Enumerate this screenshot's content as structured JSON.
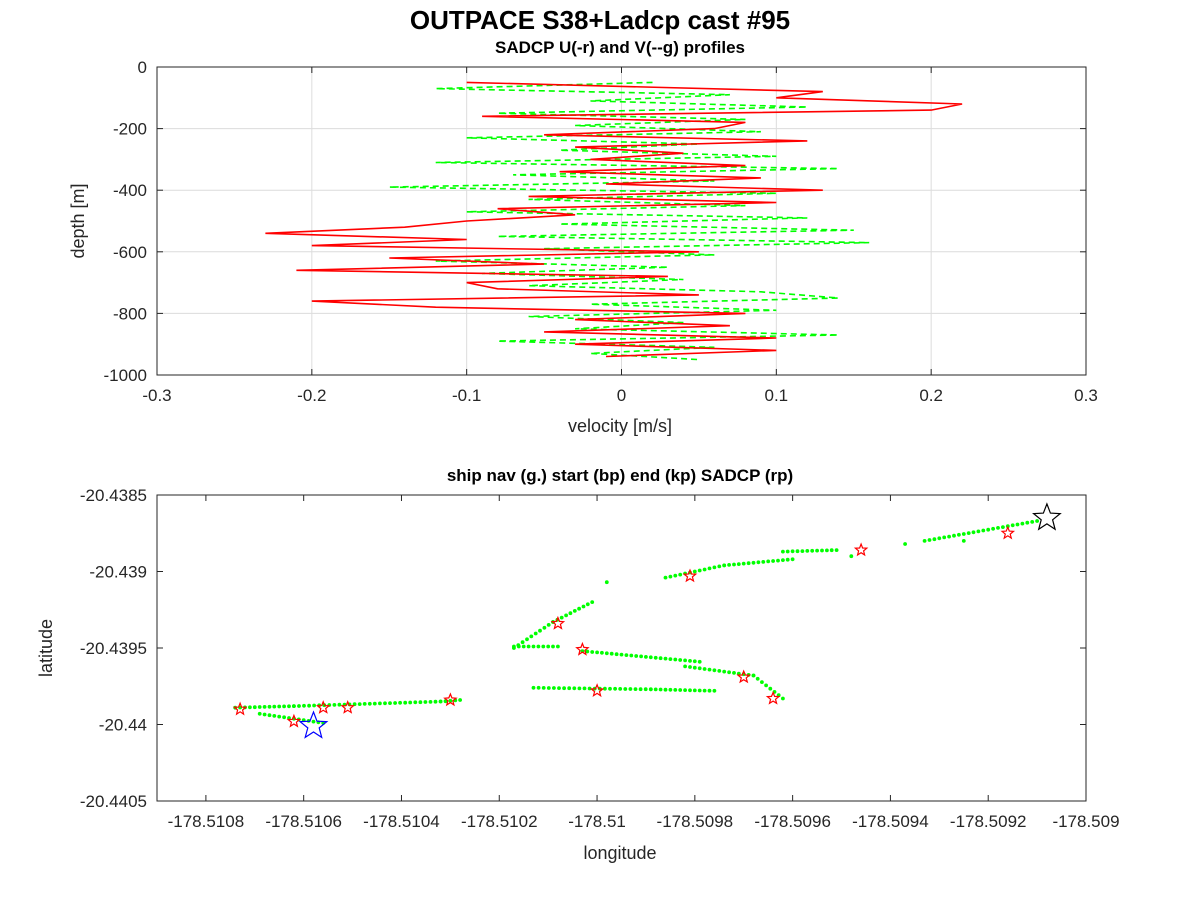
{
  "figure": {
    "title": "OUTPACE S38+Ladcp cast #95"
  },
  "chart_data": [
    {
      "type": "line",
      "title": "SADCP U(-r) and V(--g) profiles",
      "xlabel": "velocity [m/s]",
      "ylabel": "depth [m]",
      "xlim": [
        -0.3,
        0.3
      ],
      "ylim": [
        -1000,
        0
      ],
      "xticks": [
        "-0.3",
        "-0.2",
        "-0.1",
        "0",
        "0.1",
        "0.2",
        "0.3"
      ],
      "yticks": [
        "0",
        "-200",
        "-400",
        "-600",
        "-800",
        "-1000"
      ],
      "grid": true,
      "series": [
        {
          "style": "solid",
          "color": "#ff0000",
          "depth": [
            -50,
            -80,
            -100,
            -120,
            -140,
            -160,
            -180,
            -200,
            -220,
            -240,
            -260,
            -280,
            -300,
            -320,
            -340,
            -360,
            -380,
            -400,
            -420,
            -440,
            -460,
            -480,
            -500,
            -520,
            -540,
            -560,
            -580,
            -600,
            -620,
            -640,
            -660,
            -680,
            -700,
            -720,
            -740,
            -760,
            -780,
            -800,
            -820,
            -840,
            -860,
            -880,
            -900,
            -920,
            -940
          ],
          "values": [
            -0.1,
            0.13,
            0.1,
            0.22,
            0.2,
            -0.09,
            0.08,
            0.06,
            -0.05,
            0.12,
            -0.03,
            0.04,
            -0.02,
            0.08,
            -0.04,
            0.09,
            -0.01,
            0.13,
            -0.06,
            0.1,
            -0.08,
            -0.03,
            -0.1,
            -0.14,
            -0.23,
            -0.1,
            -0.2,
            0.05,
            -0.15,
            -0.05,
            -0.21,
            0.03,
            -0.1,
            -0.08,
            0.05,
            -0.2,
            -0.12,
            0.08,
            -0.03,
            0.07,
            -0.05,
            0.1,
            -0.03,
            0.1,
            -0.01
          ]
        },
        {
          "style": "dashed",
          "color": "#00ff00",
          "depth": [
            -50,
            -70,
            -90,
            -110,
            -130,
            -150,
            -170,
            -190,
            -210,
            -230,
            -250,
            -270,
            -290,
            -310,
            -330,
            -350,
            -370,
            -390,
            -410,
            -430,
            -450,
            -470,
            -490,
            -510,
            -530,
            -550,
            -570,
            -590,
            -610,
            -630,
            -650,
            -670,
            -690,
            -710,
            -730,
            -750,
            -770,
            -790,
            -810,
            -830,
            -850,
            -870,
            -890,
            -910,
            -930,
            -950
          ],
          "values": [
            0.02,
            -0.12,
            0.07,
            -0.02,
            0.12,
            -0.08,
            0.08,
            -0.03,
            0.09,
            -0.1,
            0.05,
            -0.04,
            0.1,
            -0.12,
            0.14,
            -0.07,
            0.06,
            -0.15,
            0.1,
            -0.06,
            0.08,
            -0.1,
            0.12,
            -0.04,
            0.15,
            -0.08,
            0.16,
            -0.05,
            0.06,
            -0.12,
            0.03,
            -0.09,
            0.04,
            -0.06,
            0.09,
            0.14,
            -0.02,
            0.1,
            -0.06,
            0.04,
            -0.03,
            0.14,
            -0.08,
            0.06,
            -0.02,
            0.05
          ]
        }
      ]
    },
    {
      "type": "scatter",
      "title": "ship nav (g.) start (bp) end (kp) SADCP (rp)",
      "xlabel": "longitude",
      "ylabel": "latitude",
      "xlim": [
        -178.5109,
        -178.509
      ],
      "ylim": [
        -20.4405,
        -20.4385
      ],
      "xticks": [
        "-178.5108",
        "-178.5106",
        "-178.5104",
        "-178.5102",
        "-178.51",
        "-178.5098",
        "-178.5096",
        "-178.5094",
        "-178.5092",
        "-178.509"
      ],
      "yticks": [
        "-20.4385",
        "-20.439",
        "-20.4395",
        "-20.44",
        "-20.4405"
      ],
      "grid": false,
      "nav_segments": [
        {
          "x": [
            -178.51074,
            -178.51062
          ],
          "y": [
            -20.43989,
            -20.43988
          ]
        },
        {
          "x": [
            -178.51069,
            -178.51056
          ],
          "y": [
            -20.43993,
            -20.43999
          ]
        },
        {
          "x": [
            -178.51062,
            -178.51032
          ],
          "y": [
            -20.43988,
            -20.43985
          ]
        },
        {
          "x": [
            -178.51032,
            -178.51028
          ],
          "y": [
            -20.43985,
            -20.43984
          ]
        },
        {
          "x": [
            -178.51017,
            -178.51008
          ],
          "y": [
            -20.43949,
            -20.43949
          ]
        },
        {
          "x": [
            -178.51017,
            -178.51009
          ],
          "y": [
            -20.4395,
            -20.43933
          ]
        },
        {
          "x": [
            -178.51009,
            -178.51001
          ],
          "y": [
            -20.43933,
            -20.4392
          ]
        },
        {
          "x": [
            -178.51003,
            -178.50979
          ],
          "y": [
            -20.43952,
            -20.43959
          ]
        },
        {
          "x": [
            -178.51013,
            -178.50989
          ],
          "y": [
            -20.43976,
            -20.43977
          ]
        },
        {
          "x": [
            -178.50989,
            -178.50976
          ],
          "y": [
            -20.43977,
            -20.43978
          ]
        },
        {
          "x": [
            -178.50982,
            -178.50968
          ],
          "y": [
            -20.43962,
            -20.43968
          ]
        },
        {
          "x": [
            -178.50968,
            -178.50962
          ],
          "y": [
            -20.43968,
            -20.43983
          ]
        },
        {
          "x": [
            -178.50986,
            -178.50974
          ],
          "y": [
            -20.43904,
            -20.43896
          ]
        },
        {
          "x": [
            -178.50974,
            -178.5096
          ],
          "y": [
            -20.43896,
            -20.43892
          ]
        },
        {
          "x": [
            -178.50962,
            -178.50951
          ],
          "y": [
            -20.43887,
            -20.43886
          ]
        },
        {
          "x": [
            -178.50933,
            -178.5091
          ],
          "y": [
            -20.4388,
            -20.43867
          ]
        }
      ],
      "nav_points": [
        {
          "x": [
            -178.50998,
            -178.50948,
            -178.50937,
            -178.50925
          ],
          "y": [
            -20.43907,
            -20.4389,
            -20.43882,
            -20.4388
          ]
        }
      ],
      "start": {
        "x": -178.51058,
        "y": -20.44001
      },
      "end": {
        "x": -178.50908,
        "y": -20.43865
      },
      "sadcp": {
        "x": [
          -178.51073,
          -178.51062,
          -178.51056,
          -178.51051,
          -178.5103,
          -178.51008,
          -178.51003,
          -178.51,
          -178.50981,
          -178.5097,
          -178.50964,
          -178.50946,
          -178.50916
        ],
        "y": [
          -20.4399,
          -20.43998,
          -20.43989,
          -20.43989,
          -20.43984,
          -20.43934,
          -20.43951,
          -20.43978,
          -20.43903,
          -20.43969,
          -20.43983,
          -20.43886,
          -20.43875
        ]
      }
    }
  ]
}
